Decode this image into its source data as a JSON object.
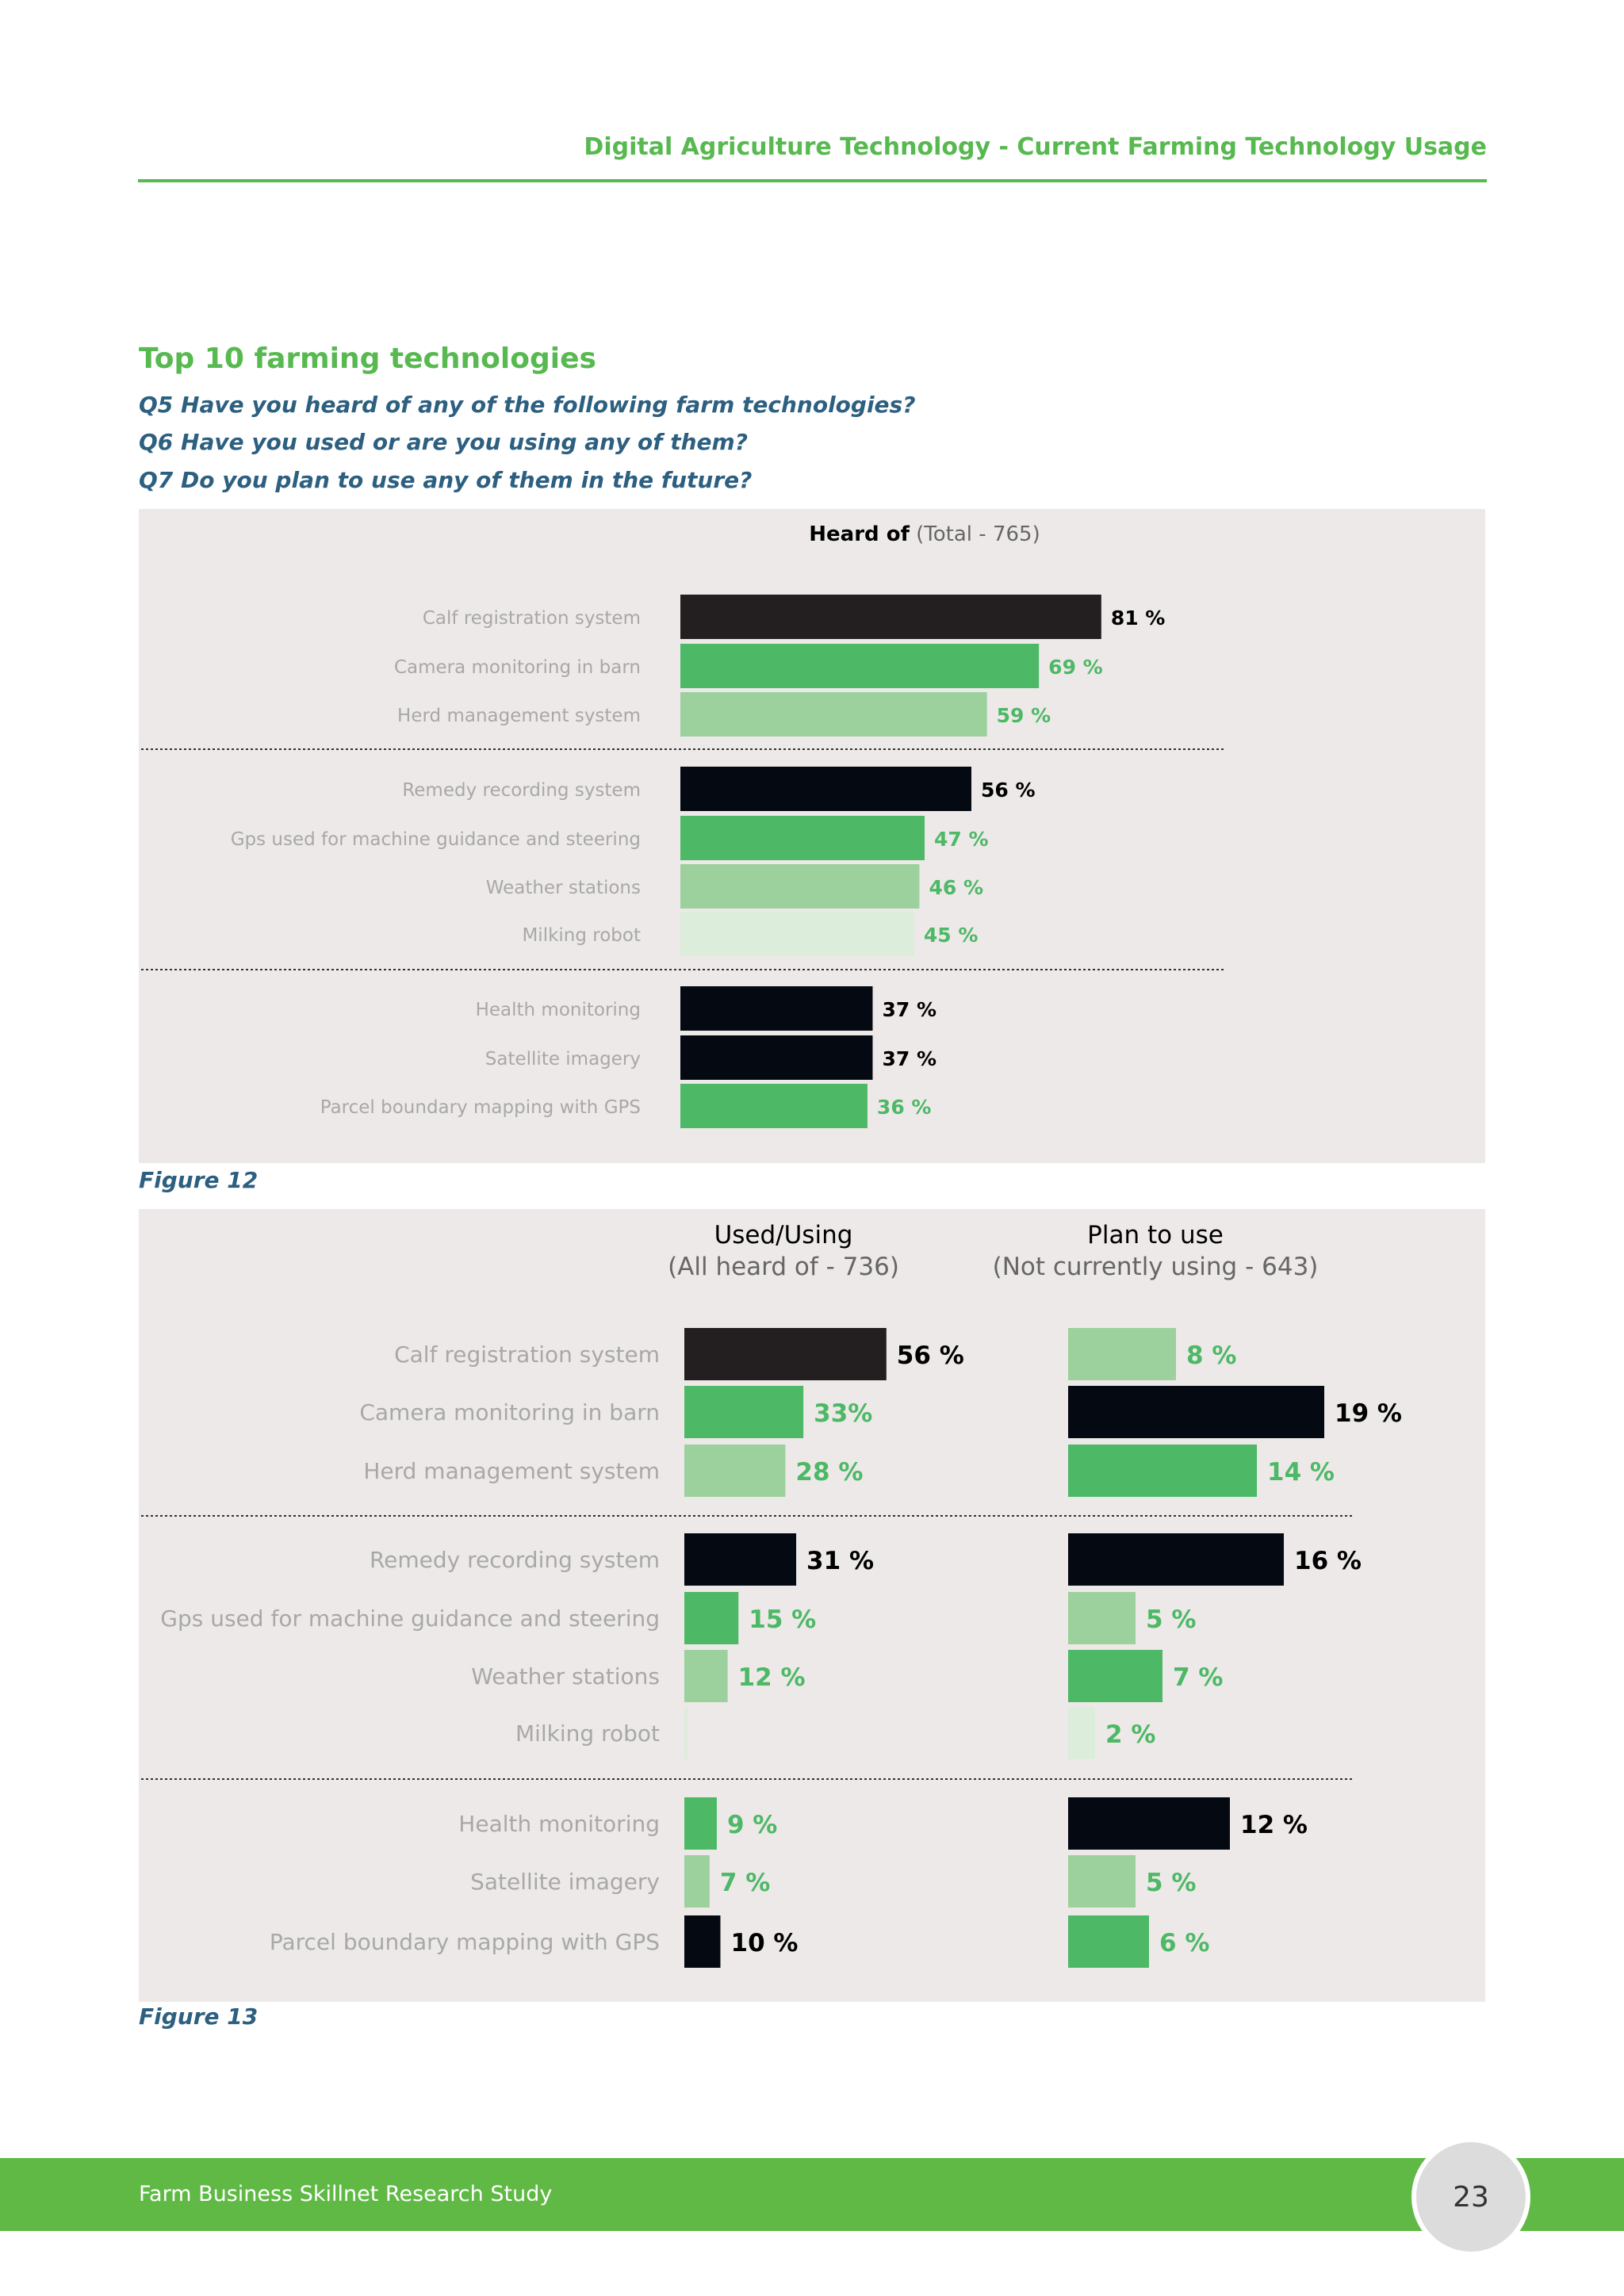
{
  "header": {
    "title": "Digital Agriculture Technology - Current Farming Technology Usage"
  },
  "section": {
    "title": "Top 10 farming technologies",
    "questions": [
      "Q5 Have you heard of any of the following farm technologies?",
      "Q6 Have you used or are you using any of them?",
      "Q7 Do you plan to use any of them in the future?"
    ]
  },
  "colors": {
    "dark": "#231f20",
    "black": "#050a12",
    "green": "#4db866",
    "light_green": "#9cd19e",
    "pale_green": "#dceddb",
    "value_dark": "#000000",
    "value_green": "#4db866"
  },
  "chart_data": [
    {
      "type": "bar",
      "orientation": "horizontal",
      "figure_label": "Figure 12",
      "title": "Heard of",
      "subtitle": "(Total - 765)",
      "xlim": [
        0,
        100
      ],
      "unit": "%",
      "categories": [
        "Calf registration system",
        "Camera monitoring in barn",
        "Herd management system",
        "Remedy recording system",
        "Gps used for machine guidance and steering",
        "Weather stations",
        "Milking robot",
        "Health monitoring",
        "Satellite imagery",
        "Parcel boundary mapping with GPS"
      ],
      "groups": [
        3,
        4,
        3
      ],
      "values": [
        81,
        69,
        59,
        56,
        47,
        46,
        45,
        37,
        37,
        36
      ],
      "labels": [
        "81 %",
        "69 %",
        "59 %",
        "56 %",
        "47 %",
        "46 %",
        "45 %",
        "37 %",
        "37 %",
        "36 %"
      ],
      "bar_colors": [
        "dark",
        "green",
        "light_green",
        "black",
        "green",
        "light_green",
        "pale_green",
        "black",
        "black",
        "green"
      ],
      "label_colors": [
        "value_dark",
        "value_green",
        "value_green",
        "value_dark",
        "value_green",
        "value_green",
        "value_green",
        "value_dark",
        "value_dark",
        "value_green"
      ]
    },
    {
      "type": "bar",
      "orientation": "horizontal",
      "figure_label": "Figure 13",
      "categories": [
        "Calf registration system",
        "Camera monitoring in barn",
        "Herd management system",
        "Remedy recording system",
        "Gps used for machine guidance and steering",
        "Weather stations",
        "Milking robot",
        "Health monitoring",
        "Satellite imagery",
        "Parcel boundary mapping with GPS"
      ],
      "groups": [
        3,
        4,
        3
      ],
      "series": [
        {
          "name": "Used/Using",
          "subtitle": "(All heard of - 736)",
          "xlim": [
            0,
            100
          ],
          "values": [
            56,
            33,
            28,
            31,
            15,
            12,
            1,
            9,
            7,
            10
          ],
          "labels": [
            "56 %",
            "33%",
            "28 %",
            "31 %",
            "15 %",
            "12 %",
            "",
            "9 %",
            "7 %",
            "10 %"
          ],
          "bar_colors": [
            "dark",
            "green",
            "light_green",
            "black",
            "green",
            "light_green",
            "pale_green",
            "green",
            "light_green",
            "black"
          ],
          "label_colors": [
            "value_dark",
            "value_green",
            "value_green",
            "value_dark",
            "value_green",
            "value_green",
            "value_green",
            "value_green",
            "value_green",
            "value_dark"
          ]
        },
        {
          "name": "Plan to use",
          "subtitle": "(Not currently using - 643)",
          "xlim": [
            0,
            100
          ],
          "values": [
            8,
            19,
            14,
            16,
            5,
            7,
            2,
            12,
            5,
            6
          ],
          "labels": [
            "8 %",
            "19 %",
            "14 %",
            "16 %",
            "5 %",
            "7 %",
            "2 %",
            "12 %",
            "5 %",
            "6 %"
          ],
          "bar_colors": [
            "light_green",
            "black",
            "green",
            "black",
            "light_green",
            "green",
            "pale_green",
            "black",
            "light_green",
            "green"
          ],
          "label_colors": [
            "value_green",
            "value_dark",
            "value_green",
            "value_dark",
            "value_green",
            "value_green",
            "value_green",
            "value_dark",
            "value_green",
            "value_green"
          ]
        }
      ]
    }
  ],
  "footer": {
    "text": "Farm Business Skillnet Research Study",
    "page_number": "23"
  }
}
